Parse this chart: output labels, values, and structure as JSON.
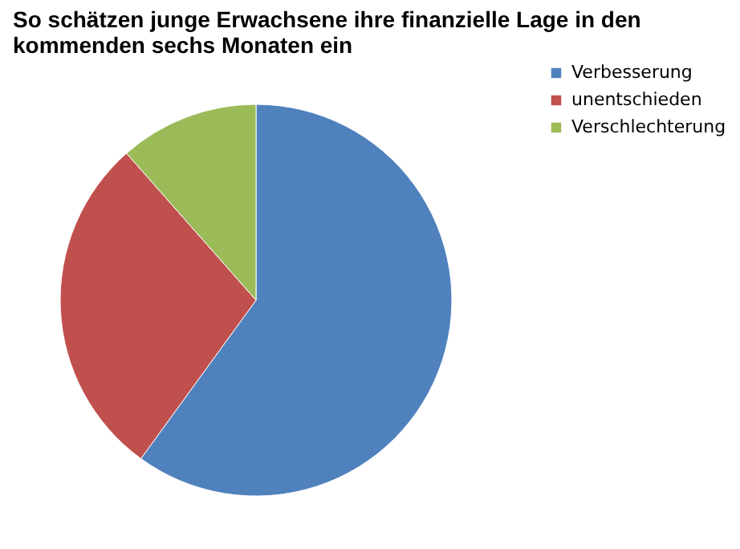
{
  "chart_data": {
    "type": "pie",
    "title": "So schätzen junge Erwachsene ihre finanzielle Lage in den kommenden sechs Monaten ein",
    "categories": [
      "Verbesserung",
      "unentschieden",
      "Verschlechterung"
    ],
    "values": [
      60,
      28.5,
      11.5
    ],
    "colors": [
      "#4f81bd",
      "#c0504d",
      "#9bbb59"
    ],
    "legend": "right"
  }
}
